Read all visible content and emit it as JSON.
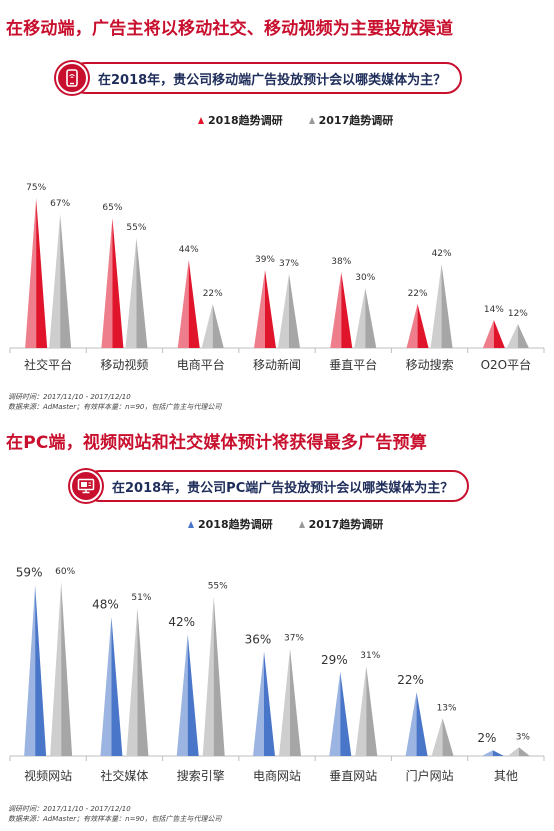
{
  "section1": {
    "heading": "在移动端，广告主将以移动社交、移动视频为主要投放渠道",
    "question": "在2018年，贵公司移动端广告投放预计会以哪类媒体为主？",
    "icon": "mobile-icon",
    "note_line1": "调研时间：2017/11/10 - 2017/12/10",
    "note_line2": "数据来源：AdMaster；有效样本量：n=90，包括广告主与代理公司"
  },
  "section2": {
    "heading": "在PC端，视频网站和社交媒体预计将获得最多广告预算",
    "question": "在2018年，贵公司PC端广告投放预计会以哪类媒体为主？",
    "icon": "monitor-icon",
    "note_line1": "调研时间：2017/11/10 - 2017/12/10",
    "note_line2": "数据来源：AdMaster；有效样本量：n=90，包括广告主与代理公司"
  },
  "chart_data": [
    {
      "type": "bar",
      "categories": [
        "社交平台",
        "移动视频",
        "电商平台",
        "移动新闻",
        "垂直平台",
        "移动搜索",
        "O2O平台"
      ],
      "series": [
        {
          "name": "2018趋势调研",
          "values": [
            75,
            65,
            44,
            39,
            38,
            22,
            14
          ],
          "labels": [
            "75%",
            "65%",
            "44%",
            "39%",
            "38%",
            "22%",
            "14%"
          ],
          "color": "#e0152c"
        },
        {
          "name": "2017趋势调研",
          "values": [
            67,
            55,
            22,
            37,
            30,
            42,
            12
          ],
          "labels": [
            "67%",
            "55%",
            "22%",
            "37%",
            "30%",
            "42%",
            "12%"
          ],
          "color": "#a6a6a6"
        }
      ],
      "ylim": [
        0,
        80
      ],
      "legend": "top"
    },
    {
      "type": "bar",
      "categories": [
        "视频网站",
        "社交媒体",
        "搜索引擎",
        "电商网站",
        "垂直网站",
        "门户网站",
        "其他"
      ],
      "series": [
        {
          "name": "2018趋势调研",
          "values": [
            59,
            48,
            42,
            36,
            29,
            22,
            2
          ],
          "labels": [
            "59%",
            "48%",
            "42%",
            "36%",
            "29%",
            "22%",
            "2%"
          ],
          "color": "#4a76c9"
        },
        {
          "name": "2017趋势调研",
          "values": [
            60,
            51,
            55,
            37,
            31,
            13,
            3
          ],
          "labels": [
            "60%",
            "51%",
            "55%",
            "37%",
            "31%",
            "13%",
            "3%"
          ],
          "color": "#a6a6a6"
        }
      ],
      "ylim": [
        0,
        62
      ],
      "legend": "top"
    }
  ]
}
